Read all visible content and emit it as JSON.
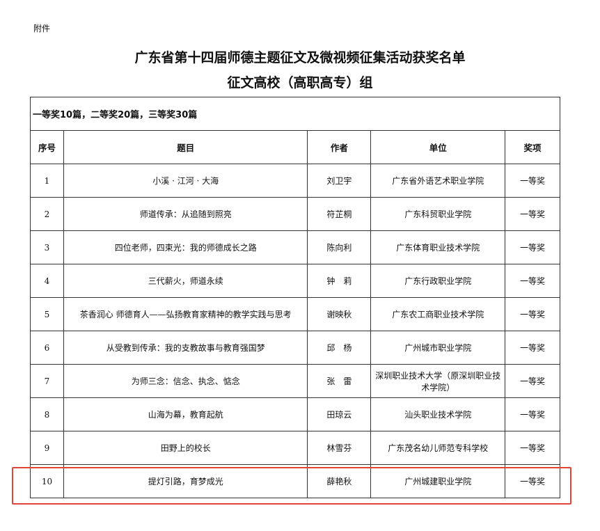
{
  "attachment_label": "附件",
  "title": "广东省第十四届师德主题征文及微视频征集活动获奖名单",
  "subtitle": "征文高校（高职高专）组",
  "summary": "一等奖10篇，二等奖20篇，三等奖30篇",
  "columns": [
    "序号",
    "题目",
    "作者",
    "单位",
    "奖项"
  ],
  "rows": [
    [
      "1",
      "小溪 · 江河 · 大海",
      "刘卫宇",
      "广东省外语艺术职业学院",
      "一等奖"
    ],
    [
      "2",
      "师道传承：从追随到照亮",
      "符芷桐",
      "广东科贸职业学院",
      "一等奖"
    ],
    [
      "3",
      "四位老师，四束光：我的师德成长之路",
      "陈向利",
      "广东体育职业技术学院",
      "一等奖"
    ],
    [
      "4",
      "三代薪火，师道永续",
      "钟　莉",
      "广东行政职业学院",
      "一等奖"
    ],
    [
      "5",
      "茶香润心 师德育人——弘扬教育家精神的教学实践与思考",
      "谢映秋",
      "广东农工商职业技术学院",
      "一等奖"
    ],
    [
      "6",
      "从受教到传承：我的支教故事与教育强国梦",
      "邱　杨",
      "广州城市职业学院",
      "一等奖"
    ],
    [
      "7",
      "为师三念：信念、执念、惦念",
      "张　雷",
      "深圳职业技术大学（原深圳职业技术学院）",
      "一等奖"
    ],
    [
      "8",
      "山海为幕，教育起航",
      "田琼云",
      "汕头职业技术学院",
      "一等奖"
    ],
    [
      "9",
      "田野上的校长",
      "林雪芬",
      "广东茂名幼儿师范专科学校",
      "一等奖"
    ],
    [
      "10",
      "提灯引路，育梦成光",
      "薛艳秋",
      "广州城建职业学院",
      "一等奖"
    ]
  ],
  "highlight_color": "#e0453a"
}
